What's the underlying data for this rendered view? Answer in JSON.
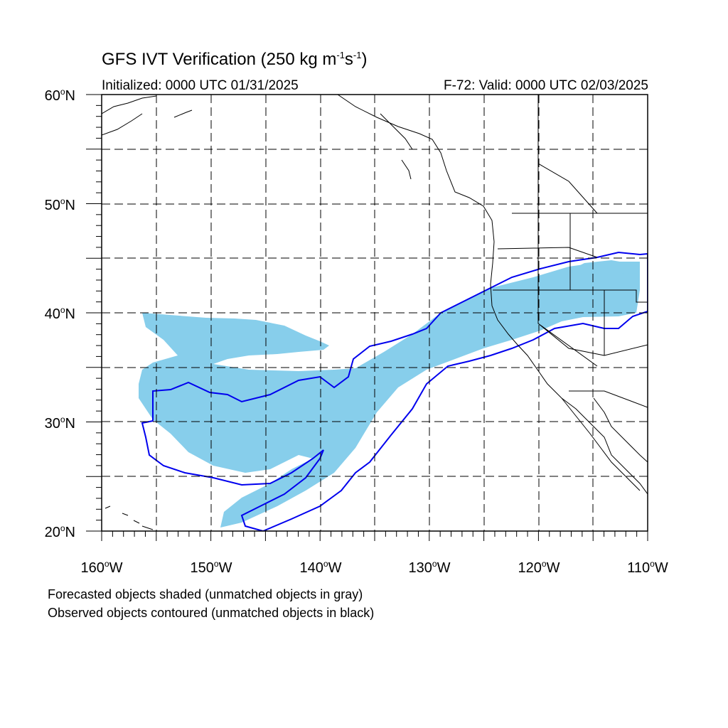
{
  "title": {
    "main": "GFS IVT Verification (250 kg m",
    "exp1": "-1",
    "mid": "s",
    "exp2": "-1",
    "end": ")"
  },
  "subtitle_left": "Initialized: 0000 UTC 01/31/2025",
  "subtitle_right": "F-72: Valid: 0000 UTC 02/03/2025",
  "lat_labels": [
    {
      "num": "60",
      "deg": "o",
      "hemi": "N"
    },
    {
      "num": "50",
      "deg": "o",
      "hemi": "N"
    },
    {
      "num": "40",
      "deg": "o",
      "hemi": "N"
    },
    {
      "num": "30",
      "deg": "o",
      "hemi": "N"
    },
    {
      "num": "20",
      "deg": "o",
      "hemi": "N"
    }
  ],
  "lon_labels": [
    {
      "num": "160",
      "deg": "o",
      "hemi": "W"
    },
    {
      "num": "150",
      "deg": "o",
      "hemi": "W"
    },
    {
      "num": "140",
      "deg": "o",
      "hemi": "W"
    },
    {
      "num": "130",
      "deg": "o",
      "hemi": "W"
    },
    {
      "num": "120",
      "deg": "o",
      "hemi": "W"
    },
    {
      "num": "110",
      "deg": "o",
      "hemi": "W"
    }
  ],
  "legend_notes": [
    "Forecasted objects shaded (unmatched objects in gray)",
    "Observed objects contoured (unmatched objects in black)"
  ],
  "colors": {
    "forecast_fill": "#87ceeb",
    "observed_contour": "#0000ee",
    "coastline": "#000000",
    "grid": "#000000"
  }
}
